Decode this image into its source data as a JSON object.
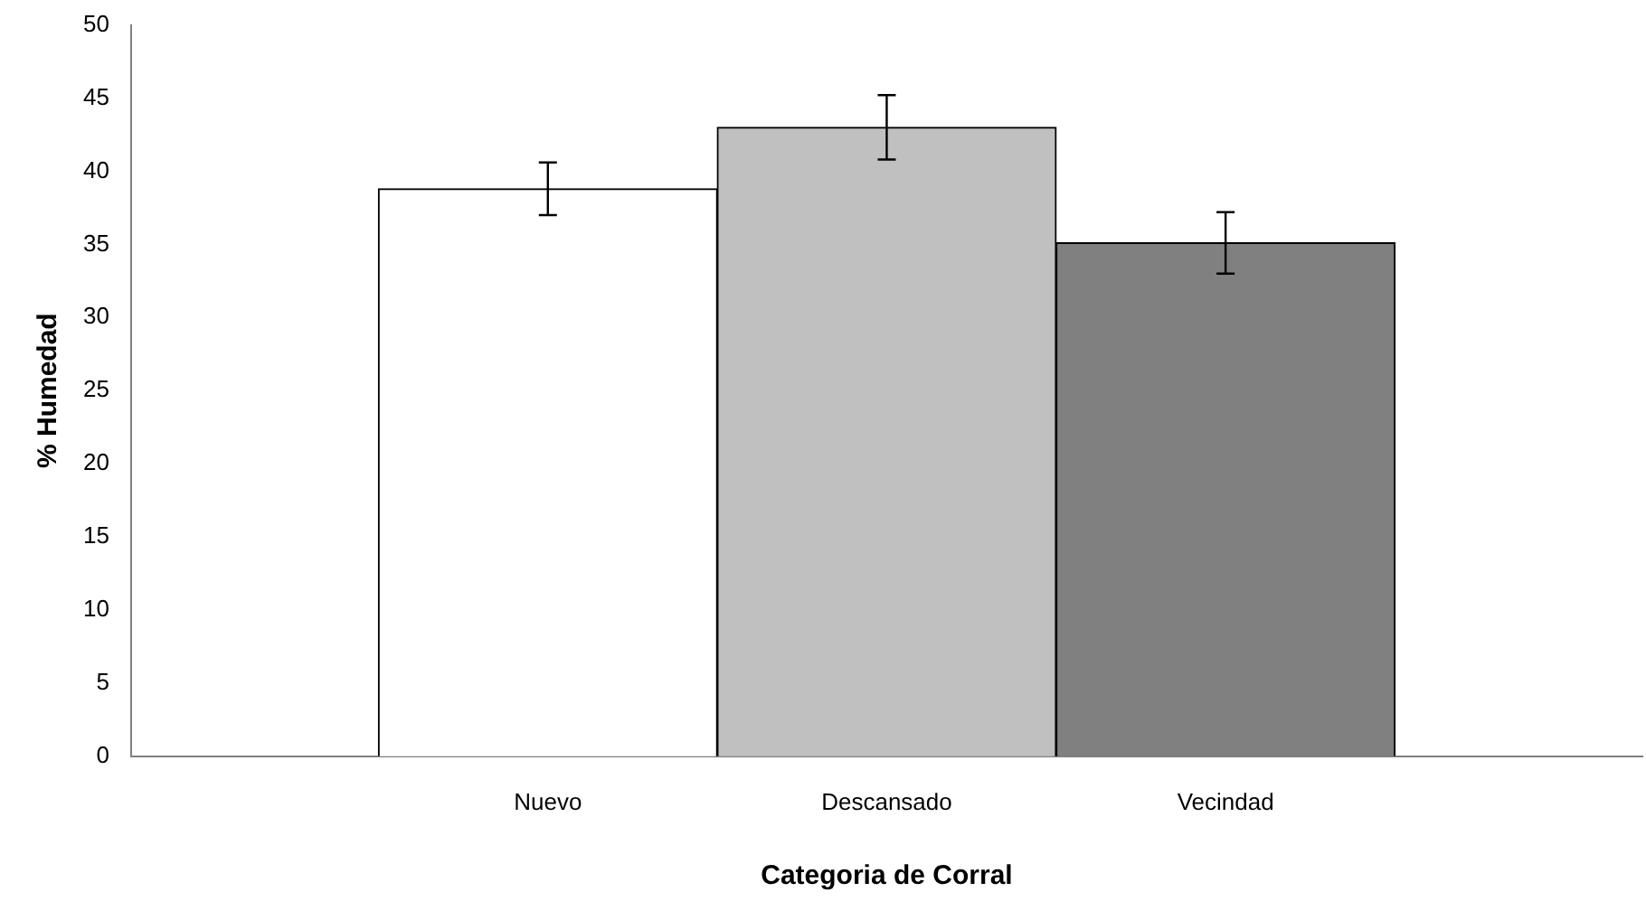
{
  "chart_data": {
    "type": "bar",
    "xlabel": "Categoria de Corral",
    "ylabel": "% Humedad",
    "categories": [
      "Nuevo",
      "Descansado",
      "Vecindad"
    ],
    "values": [
      38.8,
      43.0,
      35.1
    ],
    "colors": [
      "#ffffff",
      "#c0c0c0",
      "#808080"
    ],
    "errors": [
      1.8,
      2.2,
      2.1
    ],
    "ylim": [
      0,
      50
    ],
    "yticks": [
      0,
      5,
      10,
      15,
      20,
      25,
      30,
      35,
      40,
      45,
      50
    ],
    "grid": false,
    "legend": false
  }
}
